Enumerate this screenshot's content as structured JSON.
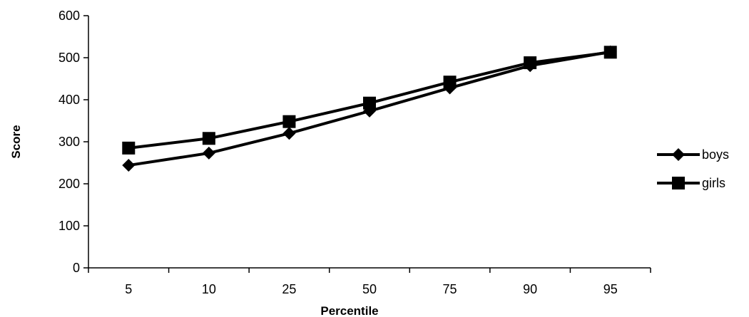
{
  "chart_data": {
    "type": "line",
    "title": "",
    "xlabel": "Percentile",
    "ylabel": "Score",
    "categories": [
      "5",
      "10",
      "25",
      "50",
      "75",
      "90",
      "95"
    ],
    "ylim": [
      0,
      600
    ],
    "yticks": [
      "0",
      "100",
      "200",
      "300",
      "400",
      "500",
      "600"
    ],
    "grid": false,
    "legend_position": "right",
    "series": [
      {
        "name": "boys",
        "marker": "diamond",
        "color": "#000000",
        "values": [
          244,
          273,
          320,
          373,
          428,
          481,
          514
        ]
      },
      {
        "name": "girls",
        "marker": "square",
        "color": "#000000",
        "values": [
          285,
          308,
          348,
          392,
          442,
          488,
          513
        ]
      }
    ]
  }
}
